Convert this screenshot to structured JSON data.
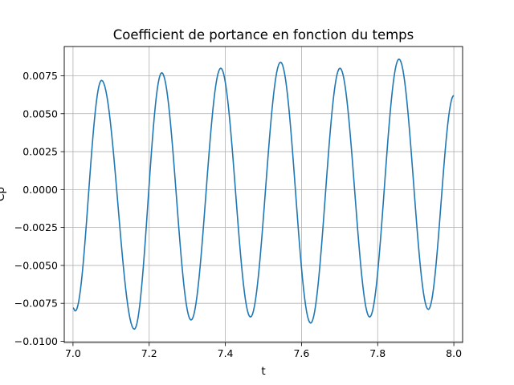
{
  "chart_data": {
    "type": "line",
    "title": "Coefficient de portance en fonction du temps",
    "xlabel": "t",
    "ylabel": "Cp",
    "xlim": [
      6.977,
      8.023
    ],
    "ylim": [
      -0.01008,
      0.00943
    ],
    "xticks": [
      7.0,
      7.2,
      7.4,
      7.6,
      7.8,
      8.0
    ],
    "xtick_labels": [
      "7.0",
      "7.2",
      "7.4",
      "7.6",
      "7.8",
      "8.0"
    ],
    "yticks": [
      -0.01,
      -0.0075,
      -0.005,
      -0.0025,
      0.0,
      0.0025,
      0.005,
      0.0075
    ],
    "ytick_labels": [
      "−0.0100",
      "−0.0075",
      "−0.0050",
      "−0.0025",
      "0.0000",
      "0.0025",
      "0.0050",
      "0.0075"
    ],
    "grid": true,
    "line_color": "#1f77b4",
    "series": [
      {
        "extrema": [
          {
            "x": 7.0,
            "y": -0.0078
          },
          {
            "x": 7.006,
            "y": -0.008
          },
          {
            "x": 7.075,
            "y": 0.0072
          },
          {
            "x": 7.161,
            "y": -0.0092
          },
          {
            "x": 7.233,
            "y": 0.0077
          },
          {
            "x": 7.31,
            "y": -0.0086
          },
          {
            "x": 7.388,
            "y": 0.008
          },
          {
            "x": 7.466,
            "y": -0.0084
          },
          {
            "x": 7.545,
            "y": 0.0084
          },
          {
            "x": 7.624,
            "y": -0.0088
          },
          {
            "x": 7.701,
            "y": 0.008
          },
          {
            "x": 7.779,
            "y": -0.0084
          },
          {
            "x": 7.856,
            "y": 0.0086
          },
          {
            "x": 7.933,
            "y": -0.0079
          },
          {
            "x": 8.0,
            "y": 0.0062
          }
        ]
      }
    ]
  }
}
